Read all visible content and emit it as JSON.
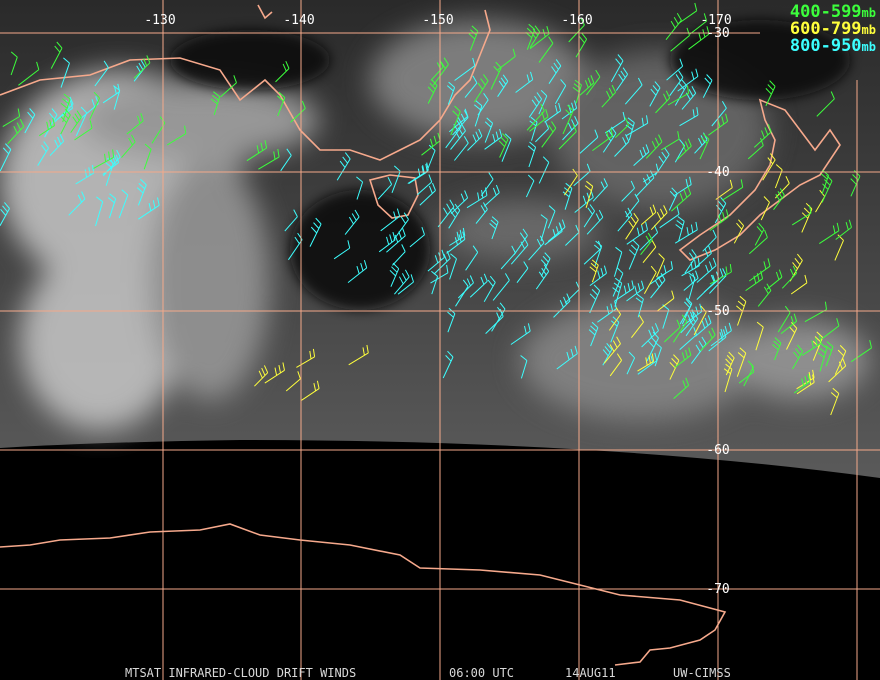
{
  "map": {
    "longitude_labels": [
      "-130",
      "-140",
      "-150",
      "-160",
      "-170"
    ],
    "latitude_labels": [
      "-30",
      "-40",
      "-50",
      "-60",
      "-70"
    ],
    "legend": [
      {
        "range": "400-599",
        "unit": "mb"
      },
      {
        "range": "600-799",
        "unit": "mb"
      },
      {
        "range": "800-950",
        "unit": "mb"
      }
    ],
    "footer": {
      "product": "MTSAT INFRARED-CLOUD DRIFT WINDS",
      "time": "06:00 UTC",
      "date": "14AUG11",
      "source": "UW-CIMSS"
    }
  }
}
